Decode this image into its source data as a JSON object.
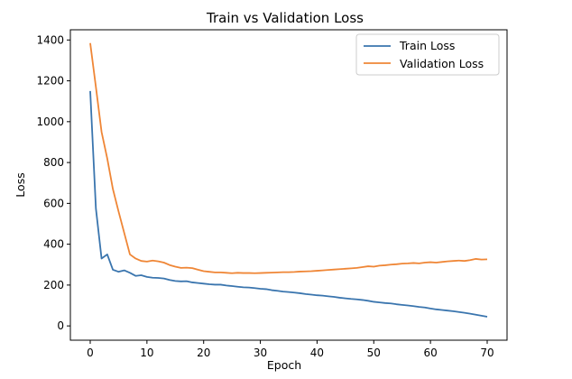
{
  "chart_data": {
    "type": "line",
    "title": "Train vs Validation Loss",
    "xlabel": "Epoch",
    "ylabel": "Loss",
    "xlim": [
      -3.5,
      73.5
    ],
    "ylim": [
      -70,
      1450
    ],
    "xticks": [
      0,
      10,
      20,
      30,
      40,
      50,
      60,
      70
    ],
    "yticks": [
      0,
      200,
      400,
      600,
      800,
      1000,
      1200,
      1400
    ],
    "grid": false,
    "legend_position": "top-right",
    "series": [
      {
        "name": "Train Loss",
        "color": "#3a75ae",
        "x": [
          0,
          1,
          2,
          3,
          4,
          5,
          6,
          7,
          8,
          9,
          10,
          11,
          12,
          13,
          14,
          15,
          16,
          17,
          18,
          19,
          20,
          21,
          22,
          23,
          24,
          25,
          26,
          27,
          28,
          29,
          30,
          31,
          32,
          33,
          34,
          35,
          36,
          37,
          38,
          39,
          40,
          41,
          42,
          43,
          44,
          45,
          46,
          47,
          48,
          49,
          50,
          51,
          52,
          53,
          54,
          55,
          56,
          57,
          58,
          59,
          60,
          61,
          62,
          63,
          64,
          65,
          66,
          67,
          68,
          69,
          70
        ],
        "values": [
          1150,
          575,
          330,
          350,
          275,
          265,
          272,
          260,
          245,
          248,
          240,
          236,
          235,
          232,
          225,
          220,
          218,
          219,
          213,
          210,
          207,
          204,
          202,
          202,
          198,
          195,
          192,
          189,
          188,
          185,
          182,
          180,
          175,
          172,
          168,
          166,
          163,
          160,
          156,
          153,
          150,
          148,
          145,
          142,
          138,
          135,
          132,
          130,
          127,
          123,
          118,
          115,
          112,
          110,
          106,
          103,
          100,
          97,
          93,
          90,
          85,
          81,
          78,
          75,
          72,
          68,
          64,
          60,
          55,
          50,
          45
        ]
      },
      {
        "name": "Validation Loss",
        "color": "#ef8636",
        "x": [
          0,
          1,
          2,
          3,
          4,
          5,
          6,
          7,
          8,
          9,
          10,
          11,
          12,
          13,
          14,
          15,
          16,
          17,
          18,
          19,
          20,
          21,
          22,
          23,
          24,
          25,
          26,
          27,
          28,
          29,
          30,
          31,
          32,
          33,
          34,
          35,
          36,
          37,
          38,
          39,
          40,
          41,
          42,
          43,
          44,
          45,
          46,
          47,
          48,
          49,
          50,
          51,
          52,
          53,
          54,
          55,
          56,
          57,
          58,
          59,
          60,
          61,
          62,
          63,
          64,
          65,
          66,
          67,
          68,
          69,
          70
        ],
        "values": [
          1385,
          1170,
          950,
          820,
          670,
          560,
          455,
          350,
          330,
          318,
          315,
          320,
          316,
          310,
          298,
          290,
          284,
          285,
          283,
          275,
          268,
          265,
          262,
          262,
          260,
          258,
          260,
          259,
          259,
          258,
          259,
          260,
          261,
          262,
          263,
          263,
          264,
          266,
          267,
          268,
          270,
          272,
          274,
          276,
          278,
          280,
          282,
          284,
          288,
          292,
          290,
          295,
          297,
          300,
          302,
          305,
          306,
          308,
          306,
          310,
          312,
          310,
          313,
          316,
          318,
          320,
          318,
          322,
          328,
          325,
          326
        ]
      }
    ]
  }
}
